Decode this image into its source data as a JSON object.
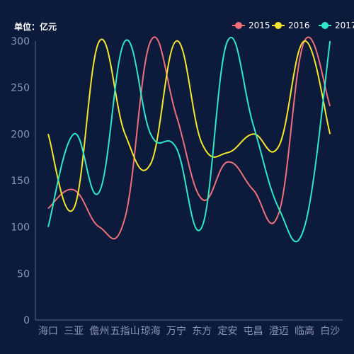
{
  "chart_data": {
    "type": "line",
    "unit_label": "单位：亿元",
    "categories": [
      "海口",
      "三亚",
      "儋州",
      "五指山",
      "琼海",
      "万宁",
      "东方",
      "定安",
      "屯昌",
      "澄迈",
      "临高",
      "白沙"
    ],
    "ylim": [
      0,
      300
    ],
    "yticks": [
      0,
      50,
      100,
      150,
      200,
      250,
      300
    ],
    "grid": false,
    "smooth": true,
    "legend_position": "top-right",
    "series": [
      {
        "name": "2015",
        "color": "#f0707a",
        "values": [
          120,
          140,
          100,
          110,
          300,
          220,
          130,
          170,
          140,
          115,
          300,
          230
        ]
      },
      {
        "name": "2016",
        "color": "#f5e62a",
        "values": [
          200,
          120,
          300,
          200,
          168,
          300,
          190,
          180,
          200,
          187,
          300,
          200
        ]
      },
      {
        "name": "2017",
        "color": "#2ee8c8",
        "values": [
          100,
          200,
          138,
          300,
          200,
          185,
          100,
          300,
          210,
          120,
          100,
          300
        ]
      }
    ]
  }
}
